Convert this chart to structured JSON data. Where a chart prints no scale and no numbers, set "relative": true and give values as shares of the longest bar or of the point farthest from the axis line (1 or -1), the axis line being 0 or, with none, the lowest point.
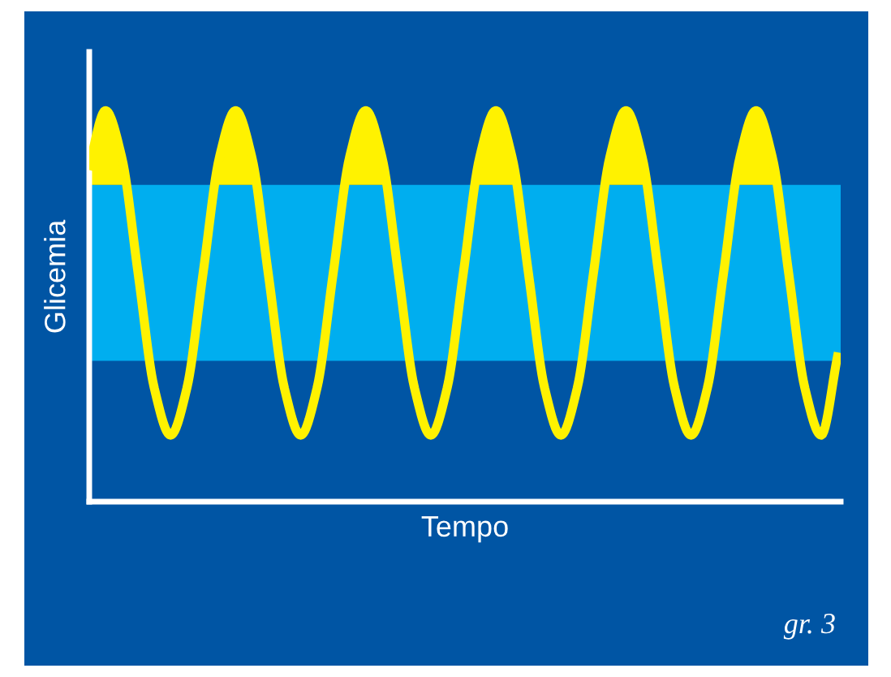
{
  "chart_data": {
    "type": "line",
    "relative": true,
    "xlabel": "Tempo",
    "ylabel": "Glicemia",
    "categories": [
      null,
      null,
      null,
      null,
      null,
      null,
      null,
      null,
      null,
      null,
      null,
      null,
      null,
      null,
      null,
      null,
      null,
      null,
      null,
      null,
      null,
      null,
      null,
      null,
      null,
      null,
      null,
      null,
      null,
      null,
      null,
      null,
      null,
      null,
      null,
      null,
      null,
      null,
      null,
      null,
      null,
      null,
      null,
      null,
      null,
      null,
      null
    ],
    "series": [
      {
        "color": "#fff200",
        "values": [
          0.86,
          1,
          0.88,
          0.585,
          0.29,
          0.17,
          0.29,
          0.585,
          0.88,
          1,
          0.88,
          0.585,
          0.29,
          0.17,
          0.29,
          0.585,
          0.88,
          1,
          0.88,
          0.585,
          0.29,
          0.17,
          0.29,
          0.585,
          0.88,
          1,
          0.88,
          0.585,
          0.29,
          0.17,
          0.29,
          0.585,
          0.88,
          1,
          0.88,
          0.585,
          0.29,
          0.17,
          0.29,
          0.585,
          0.88,
          1,
          0.88,
          0.585,
          0.29,
          0.17,
          0.37
        ]
      }
    ],
    "bands": [
      {
        "axis": "y",
        "from": 0.36,
        "to": 0.81,
        "color": "#00aeef"
      }
    ],
    "annotations": [
      "gr. 3"
    ],
    "legend": false,
    "marker": "none",
    "line_style": "solid"
  }
}
